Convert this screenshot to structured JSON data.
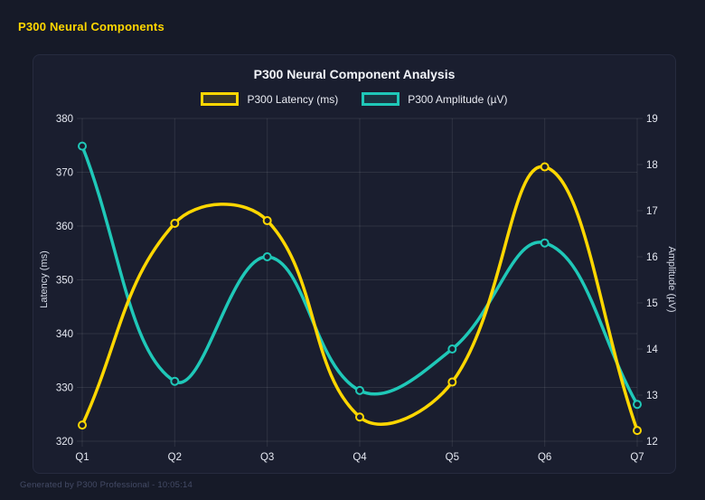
{
  "page": {
    "title": "P300 Neural Components",
    "footer": "Generated by P300 Professional - 10:05:14",
    "background": "#161a28",
    "card_background": "#1a1e2f",
    "accent": "#ffd700"
  },
  "chart_data": {
    "type": "line",
    "title": "P300 Neural Component Analysis",
    "categories": [
      "Q1",
      "Q2",
      "Q3",
      "Q4",
      "Q5",
      "Q6",
      "Q7"
    ],
    "series": [
      {
        "name": "P300 Latency (ms)",
        "axis": "left",
        "color": "#ffd700",
        "values": [
          323,
          360.5,
          361,
          324.5,
          331,
          371,
          322
        ]
      },
      {
        "name": "P300 Amplitude (µV)",
        "axis": "right",
        "color": "#1fc8b8",
        "values": [
          18.4,
          13.3,
          16.0,
          13.1,
          14.0,
          16.3,
          12.8
        ]
      }
    ],
    "axes": {
      "left": {
        "label": "Latency (ms)",
        "min": 320,
        "max": 380,
        "step": 10
      },
      "right": {
        "label": "Amplitude (µV)",
        "min": 12,
        "max": 19,
        "step": 1
      }
    },
    "grid": true,
    "grid_color": "rgba(255,255,255,0.09)",
    "tick_color": "#e6e9f2",
    "legend_position": "top",
    "line_tension": 0.4
  }
}
